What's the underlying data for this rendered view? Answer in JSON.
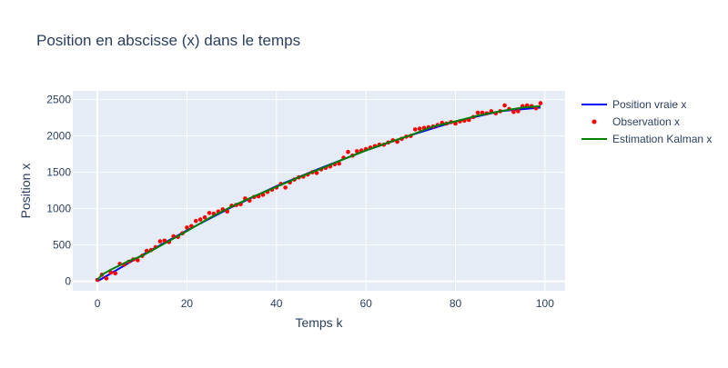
{
  "chart_data": {
    "type": "line",
    "title": "Position en abscisse (x) dans le temps",
    "xlabel": "Temps k",
    "ylabel": "Position x",
    "xlim": [
      -5.5,
      104.5
    ],
    "ylim": [
      -130,
      2620
    ],
    "x_ticks": [
      0,
      20,
      40,
      60,
      80,
      100
    ],
    "y_ticks": [
      0,
      500,
      1000,
      1500,
      2000,
      2500
    ],
    "grid": true,
    "legend_position": "right",
    "background_color": "#e5ecf6",
    "series": [
      {
        "name": "Position vraie x",
        "mode": "line",
        "color": "#0000ff",
        "x": [
          0,
          10,
          20,
          30,
          40,
          50,
          60,
          70,
          80,
          90,
          99
        ],
        "y": [
          0,
          360,
          700,
          1020,
          1310,
          1560,
          1800,
          2010,
          2200,
          2340,
          2390
        ]
      },
      {
        "name": "Observation x",
        "mode": "markers",
        "color": "#ff0000",
        "x": [
          0,
          1,
          2,
          3,
          4,
          5,
          6,
          7,
          8,
          9,
          10,
          11,
          12,
          13,
          14,
          15,
          16,
          17,
          18,
          19,
          20,
          21,
          22,
          23,
          24,
          25,
          26,
          27,
          28,
          29,
          30,
          31,
          32,
          33,
          34,
          35,
          36,
          37,
          38,
          39,
          40,
          41,
          42,
          43,
          44,
          45,
          46,
          47,
          48,
          49,
          50,
          51,
          52,
          53,
          54,
          55,
          56,
          57,
          58,
          59,
          60,
          61,
          62,
          63,
          64,
          65,
          66,
          67,
          68,
          69,
          70,
          71,
          72,
          73,
          74,
          75,
          76,
          77,
          78,
          79,
          80,
          81,
          82,
          83,
          84,
          85,
          86,
          87,
          88,
          89,
          90,
          91,
          92,
          93,
          94,
          95,
          96,
          97,
          98,
          99
        ],
        "y": [
          20,
          90,
          40,
          120,
          110,
          240,
          230,
          270,
          300,
          290,
          350,
          420,
          430,
          470,
          550,
          560,
          540,
          620,
          610,
          660,
          740,
          760,
          830,
          850,
          880,
          940,
          930,
          960,
          990,
          960,
          1040,
          1050,
          1060,
          1140,
          1110,
          1160,
          1170,
          1190,
          1230,
          1260,
          1290,
          1340,
          1290,
          1360,
          1400,
          1430,
          1440,
          1470,
          1500,
          1490,
          1540,
          1560,
          1580,
          1610,
          1620,
          1700,
          1780,
          1730,
          1790,
          1800,
          1820,
          1840,
          1860,
          1880,
          1880,
          1910,
          1940,
          1920,
          1960,
          1990,
          2000,
          2090,
          2100,
          2110,
          2120,
          2130,
          2150,
          2180,
          2170,
          2190,
          2170,
          2200,
          2210,
          2220,
          2260,
          2320,
          2320,
          2310,
          2340,
          2310,
          2340,
          2420,
          2370,
          2330,
          2340,
          2410,
          2420,
          2410,
          2380,
          2450
        ]
      },
      {
        "name": "Estimation Kalman x",
        "mode": "line",
        "color": "#008000",
        "x": [
          0,
          1,
          3,
          5,
          7,
          10,
          15,
          20,
          25,
          30,
          35,
          40,
          45,
          50,
          55,
          60,
          65,
          70,
          75,
          80,
          85,
          90,
          95,
          99
        ],
        "y": [
          20,
          90,
          160,
          220,
          280,
          350,
          520,
          690,
          870,
          1030,
          1170,
          1300,
          1430,
          1550,
          1680,
          1800,
          1910,
          2010,
          2130,
          2200,
          2280,
          2340,
          2390,
          2410
        ]
      }
    ]
  }
}
